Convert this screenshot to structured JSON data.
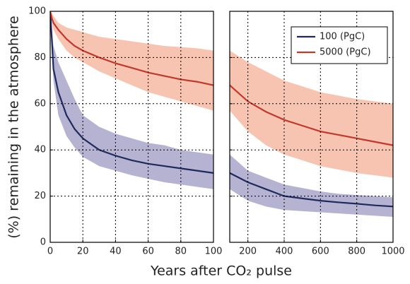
{
  "chart_data": [
    {
      "type": "line",
      "ylabel": "(%) remaining in the atmosphere",
      "xlabel": "Years after CO₂ pulse",
      "x": [
        0,
        1,
        2,
        5,
        10,
        15,
        20,
        30,
        40,
        50,
        60,
        70,
        80,
        90,
        100
      ],
      "xlim": [
        0,
        100
      ],
      "xticks": [
        0,
        20,
        40,
        60,
        80,
        100
      ],
      "ylim": [
        0,
        100
      ],
      "yticks": [
        0,
        20,
        40,
        60,
        80,
        100
      ],
      "grid": true,
      "series": [
        {
          "color": "#1f2a5c",
          "band_color": "#b5b2d2",
          "values": [
            100,
            88,
            75,
            65,
            55,
            49,
            45,
            40,
            37.5,
            35.5,
            34,
            33,
            32,
            31,
            30
          ],
          "lower": [
            100,
            82,
            70,
            55,
            46,
            41,
            37,
            33,
            31,
            29,
            27.5,
            26,
            25,
            24,
            23
          ],
          "upper": [
            100,
            92,
            85,
            78,
            70,
            62,
            55,
            50,
            47,
            45,
            43,
            42,
            40,
            39,
            38
          ]
        },
        {
          "color": "#c0392b",
          "band_color": "#f6c4b0",
          "values": [
            100,
            97,
            95,
            92,
            88,
            85,
            83,
            80,
            77.5,
            75.5,
            73.5,
            72,
            70.5,
            69.5,
            68
          ],
          "lower": [
            100,
            95,
            92,
            88,
            83,
            80,
            78,
            74,
            71,
            68,
            65,
            63,
            61,
            59,
            57
          ],
          "upper": [
            100,
            99,
            98,
            95,
            93,
            92,
            91,
            89,
            88,
            87,
            86,
            85,
            84.5,
            84,
            83
          ]
        }
      ]
    },
    {
      "type": "line",
      "x": [
        100,
        200,
        300,
        400,
        500,
        600,
        700,
        800,
        900,
        1000
      ],
      "xlim": [
        100,
        1000
      ],
      "xticks": [
        200,
        400,
        600,
        800,
        1000
      ],
      "ylim": [
        0,
        100
      ],
      "yticks": [
        20,
        40,
        60,
        80
      ],
      "grid": true,
      "legend": "upper right",
      "series": [
        {
          "name": "100 (PgC)",
          "color": "#1f2a5c",
          "band_color": "#b5b2d2",
          "values": [
            30,
            26,
            23,
            20,
            19,
            18,
            17.3,
            16.7,
            16,
            15.5
          ],
          "lower": [
            23,
            18,
            15.5,
            14,
            13.5,
            13,
            12.5,
            12,
            11.5,
            11
          ],
          "upper": [
            38,
            31,
            28,
            25,
            23.5,
            22,
            21,
            20.5,
            20,
            19.5
          ]
        },
        {
          "name": "5000 (PgC)",
          "color": "#c0392b",
          "band_color": "#f6c4b0",
          "values": [
            68,
            61,
            56.5,
            53,
            50.5,
            48,
            46.5,
            45,
            43.5,
            42
          ],
          "lower": [
            57,
            48,
            42,
            38,
            35.5,
            33,
            31.5,
            30,
            29,
            28
          ],
          "upper": [
            83,
            78,
            74,
            70,
            67.5,
            65,
            63.5,
            62,
            61,
            60
          ]
        }
      ]
    }
  ]
}
